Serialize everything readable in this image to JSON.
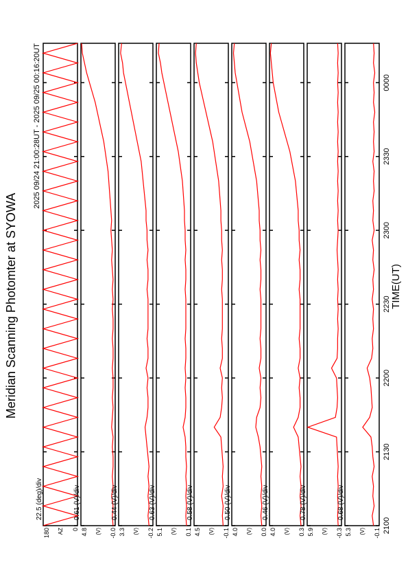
{
  "chart_data": {
    "type": "line",
    "title": "Meridian Scanning Photomter at SYOWA",
    "subtitle": "2025 09/24 21:00:28UT - 2025 09/25 00:16:20UT",
    "x_label": "TIME(UT)",
    "color": "#ff0000",
    "xlim": [
      0,
      196
    ],
    "xticks": [
      {
        "value": 0,
        "label": "2100"
      },
      {
        "value": 30,
        "label": "2130"
      },
      {
        "value": 60,
        "label": "2200"
      },
      {
        "value": 90,
        "label": "2230"
      },
      {
        "value": 120,
        "label": "2300"
      },
      {
        "value": 150,
        "label": "2330"
      },
      {
        "value": 180,
        "label": "0000"
      }
    ],
    "x": [
      0,
      4,
      8,
      12,
      16,
      20,
      24,
      28,
      32,
      36,
      40,
      44,
      48,
      52,
      56,
      60,
      64,
      68,
      72,
      76,
      80,
      84,
      88,
      92,
      96,
      100,
      104,
      108,
      112,
      116,
      120,
      124,
      128,
      132,
      136,
      140,
      144,
      148,
      152,
      156,
      160,
      164,
      168,
      172,
      176,
      180,
      184,
      188,
      192,
      196
    ],
    "panels": [
      {
        "name": "AZ",
        "scale_label": "22.5 (deg)/div",
        "ylim": [
          0,
          180
        ],
        "yticks": [
          0,
          180
        ],
        "values": [
          180,
          0,
          180,
          0,
          180,
          0,
          180,
          0,
          180,
          0,
          180,
          0,
          180,
          0,
          180,
          0,
          180,
          0,
          180,
          0,
          180,
          0,
          180,
          0,
          180,
          0,
          180,
          0,
          180,
          0,
          180,
          0,
          180,
          0,
          180,
          0,
          180,
          0,
          180,
          0,
          180,
          0,
          180,
          0,
          180,
          0,
          180,
          0,
          180,
          0
        ]
      },
      {
        "name": "(V)",
        "scale_label": "0.61 (V)/div",
        "ylim": [
          0,
          4.8
        ],
        "yticks": [
          {
            "value": 0,
            "label": "-0.0"
          },
          4.8
        ],
        "values": [
          0.3,
          0.4,
          0.3,
          0.5,
          0.3,
          0.4,
          0.3,
          0.3,
          0.4,
          0.3,
          0.5,
          0.4,
          0.3,
          0.4,
          0.3,
          0.3,
          0.4,
          0.3,
          0.3,
          0.4,
          0.3,
          0.3,
          0.4,
          0.3,
          0.4,
          0.3,
          0.4,
          0.5,
          0.4,
          0.5,
          0.6,
          0.5,
          0.6,
          0.7,
          0.8,
          0.9,
          1.0,
          1.2,
          1.4,
          1.6,
          1.9,
          2.2,
          2.5,
          2.8,
          3.2,
          3.6,
          4.0,
          4.3,
          4.6,
          4.7
        ]
      },
      {
        "name": "(V)",
        "scale_label": "0.44 (V)/div",
        "ylim": [
          -0.2,
          3.3
        ],
        "yticks": [
          -0.2,
          3.3
        ],
        "values": [
          0.2,
          0.3,
          0.2,
          0.3,
          0.2,
          0.3,
          0.2,
          0.3,
          0.4,
          0.5,
          0.6,
          0.4,
          0.3,
          0.3,
          0.4,
          0.3,
          0.5,
          0.3,
          0.3,
          0.4,
          0.3,
          0.3,
          0.3,
          0.3,
          0.4,
          0.3,
          0.3,
          0.4,
          0.3,
          0.4,
          0.4,
          0.5,
          0.5,
          0.6,
          0.7,
          0.8,
          0.9,
          1.0,
          1.2,
          1.4,
          1.6,
          1.8,
          2.0,
          2.2,
          2.4,
          2.6,
          2.8,
          2.9,
          3.1,
          3.0
        ]
      },
      {
        "name": "(V)",
        "scale_label": "0.63 (V)/div",
        "ylim": [
          0.1,
          5.1
        ],
        "yticks": [
          0.1,
          5.1
        ],
        "values": [
          0.7,
          0.8,
          0.7,
          0.8,
          0.7,
          0.8,
          0.7,
          0.8,
          0.8,
          0.9,
          1.2,
          0.9,
          0.8,
          0.8,
          0.9,
          0.8,
          0.9,
          0.8,
          0.8,
          0.9,
          0.8,
          0.8,
          0.8,
          0.8,
          0.9,
          0.8,
          0.8,
          0.9,
          0.8,
          0.9,
          0.9,
          1.0,
          1.0,
          1.1,
          1.2,
          1.3,
          1.5,
          1.7,
          1.9,
          2.2,
          2.5,
          2.8,
          3.1,
          3.4,
          3.7,
          4.0,
          4.3,
          4.5,
          4.8,
          4.7
        ]
      },
      {
        "name": "(V)",
        "scale_label": "0.58 (V)/div",
        "ylim": [
          -0.1,
          4.5
        ],
        "yticks": [
          -0.1,
          4.5
        ],
        "values": [
          0.6,
          0.7,
          0.6,
          0.8,
          0.6,
          0.7,
          0.6,
          0.7,
          0.8,
          0.9,
          1.8,
          1.0,
          0.8,
          0.7,
          0.8,
          0.7,
          1.0,
          0.7,
          0.7,
          0.8,
          0.7,
          0.7,
          0.7,
          0.7,
          0.8,
          0.7,
          0.7,
          0.8,
          0.7,
          0.8,
          0.8,
          0.9,
          0.9,
          1.0,
          1.1,
          1.2,
          1.4,
          1.6,
          1.8,
          2.0,
          2.3,
          2.6,
          2.9,
          3.2,
          3.5,
          3.8,
          4.0,
          4.2,
          4.3,
          4.2
        ]
      },
      {
        "name": "(V)",
        "scale_label": "0.50 (V)/div",
        "ylim": [
          0,
          4.0
        ],
        "yticks": [
          {
            "value": 0,
            "label": "0.0"
          },
          {
            "value": 4,
            "label": "4.0"
          }
        ],
        "values": [
          0.5,
          0.6,
          0.5,
          0.6,
          0.5,
          0.6,
          0.5,
          0.6,
          0.7,
          0.9,
          1.2,
          1.1,
          0.7,
          0.6,
          0.7,
          0.6,
          0.8,
          0.6,
          0.6,
          0.7,
          0.6,
          0.6,
          0.6,
          0.6,
          0.7,
          0.6,
          0.6,
          0.7,
          0.6,
          0.7,
          0.7,
          0.8,
          0.8,
          0.9,
          1.0,
          1.1,
          1.3,
          1.5,
          1.7,
          1.9,
          2.2,
          2.5,
          2.8,
          3.0,
          3.2,
          3.4,
          3.6,
          3.7,
          3.8,
          3.7
        ]
      },
      {
        "name": "(V)",
        "scale_label": "0.46 (V)/div",
        "ylim": [
          0.3,
          4.0
        ],
        "yticks": [
          0.3,
          {
            "value": 4,
            "label": "4.0"
          }
        ],
        "values": [
          0.6,
          0.7,
          0.6,
          0.7,
          0.6,
          0.7,
          0.6,
          0.7,
          0.8,
          0.9,
          1.4,
          0.9,
          0.7,
          0.7,
          0.8,
          0.7,
          0.9,
          0.7,
          0.7,
          0.8,
          0.7,
          0.7,
          0.7,
          0.7,
          0.8,
          0.7,
          0.7,
          0.8,
          0.7,
          0.8,
          0.8,
          0.9,
          0.9,
          1.0,
          1.1,
          1.2,
          1.4,
          1.6,
          1.8,
          2.1,
          2.4,
          2.7,
          3.0,
          3.2,
          3.4,
          3.6,
          3.7,
          3.8,
          3.9,
          3.8
        ]
      },
      {
        "name": "(V)",
        "scale_label": "0.78 (V)/div",
        "ylim": [
          -0.3,
          5.9
        ],
        "yticks": [
          -0.3,
          5.9
        ],
        "values": [
          0.3,
          0.4,
          0.3,
          0.4,
          0.3,
          0.4,
          0.3,
          0.4,
          0.5,
          0.6,
          5.8,
          0.8,
          0.5,
          0.4,
          0.5,
          0.6,
          1.5,
          0.5,
          0.4,
          0.4,
          0.3,
          0.4,
          0.3,
          0.4,
          0.3,
          0.4,
          0.3,
          0.4,
          0.5,
          0.4,
          0.3,
          0.4,
          0.3,
          0.4,
          0.3,
          0.4,
          0.3,
          0.4,
          0.3,
          0.4,
          0.3,
          0.4,
          0.3,
          0.4,
          0.3,
          0.4,
          0.3,
          0.4,
          0.3,
          0.4
        ]
      },
      {
        "name": "(V)",
        "scale_label": "0.68 (V)/div",
        "ylim": [
          -0.1,
          5.3
        ],
        "yticks": [
          -0.1,
          5.3
        ],
        "values": [
          0.8,
          1.0,
          0.7,
          0.9,
          0.8,
          1.0,
          0.7,
          0.9,
          1.0,
          1.2,
          2.5,
          1.4,
          1.0,
          1.1,
          1.2,
          1.4,
          1.8,
          1.1,
          0.9,
          1.0,
          0.8,
          0.9,
          0.8,
          1.0,
          0.8,
          0.9,
          0.7,
          0.9,
          0.8,
          1.0,
          0.7,
          0.9,
          0.8,
          0.9,
          0.7,
          0.8,
          0.7,
          0.9,
          0.7,
          0.8,
          0.7,
          0.8,
          0.6,
          0.8,
          0.7,
          0.8,
          0.6,
          0.8,
          0.7,
          0.8
        ]
      }
    ]
  }
}
